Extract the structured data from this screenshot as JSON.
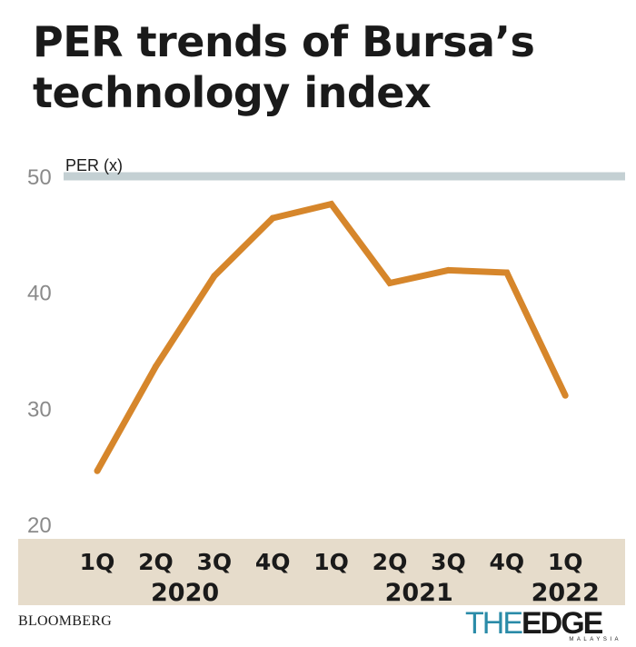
{
  "title": "PER trends of Bursa’s technology index",
  "source": "BLOOMBERG",
  "logo": {
    "the": "THE",
    "edge": "EDGE",
    "sub": "MALAYSIA"
  },
  "colors": {
    "line": "#d6862b",
    "band": "#e6dccb",
    "ref_line": "#c4d0d3",
    "axis_text": "#8a8a8a"
  },
  "chart_data": {
    "type": "line",
    "ylabel": "PER (x)",
    "ylim": [
      20,
      50
    ],
    "yticks": [
      20,
      30,
      40,
      50
    ],
    "categories": [
      "1Q",
      "2Q",
      "3Q",
      "4Q",
      "1Q",
      "2Q",
      "3Q",
      "4Q",
      "1Q"
    ],
    "years": [
      {
        "label": "2020",
        "start": 0,
        "end": 3
      },
      {
        "label": "2021",
        "start": 4,
        "end": 7
      },
      {
        "label": "2022",
        "start": 8,
        "end": 8
      }
    ],
    "series": [
      {
        "values": [
          24.6,
          33.6,
          41.4,
          46.4,
          47.6,
          40.8,
          41.9,
          41.7,
          31.1
        ]
      }
    ],
    "grid": false
  }
}
